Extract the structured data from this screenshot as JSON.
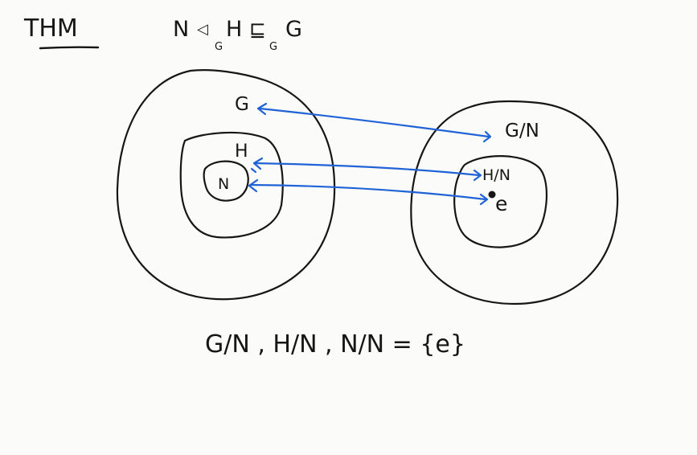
{
  "header": {
    "title": "THM",
    "statement": {
      "n": "N",
      "normal_rel": "◁",
      "normal_sub": "G",
      "h": "H",
      "subgroup_rel": "⊑",
      "subgroup_sub": "G",
      "g": "G"
    }
  },
  "left_diagram": {
    "outer_label": "G",
    "middle_label": "H",
    "inner_label": "N"
  },
  "right_diagram": {
    "outer_label": "G/N",
    "middle_label": "H/N",
    "identity_label": "e"
  },
  "colors": {
    "ink": "#161616",
    "arrow": "#1f63d6",
    "paper": "#fbfbfa"
  },
  "footer": {
    "equation": "G/N , H/N , N/N = {e}"
  }
}
